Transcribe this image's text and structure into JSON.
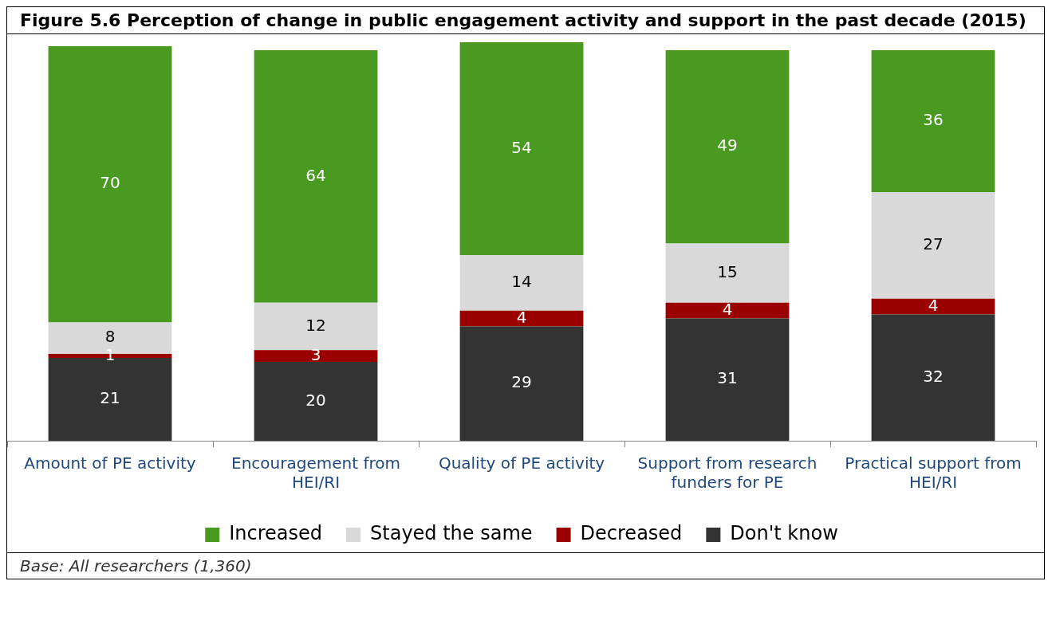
{
  "chart_data": {
    "type": "bar",
    "title": "Figure 5.6 Perception of change in public engagement activity and support in the past decade (2015)",
    "categories": [
      "Amount of PE activity",
      "Encouragement from HEI/RI",
      "Quality of PE activity",
      "Support from research funders for PE",
      "Practical support from HEI/RI"
    ],
    "stacked": true,
    "data_labels": true,
    "legend": "bottom",
    "series": [
      {
        "name": "Don't know",
        "color": "#333333",
        "values": [
          21,
          20,
          29,
          31,
          32
        ]
      },
      {
        "name": "Decreased",
        "color": "#9b0000",
        "values": [
          1,
          3,
          4,
          4,
          4
        ]
      },
      {
        "name": "Stayed the same",
        "color": "#d9d9d9",
        "values": [
          8,
          12,
          14,
          15,
          27
        ]
      },
      {
        "name": "Increased",
        "color": "#4a9a22",
        "values": [
          70,
          64,
          54,
          49,
          36
        ]
      }
    ],
    "annotations": [
      "Base: All researchers (1,360)"
    ]
  }
}
